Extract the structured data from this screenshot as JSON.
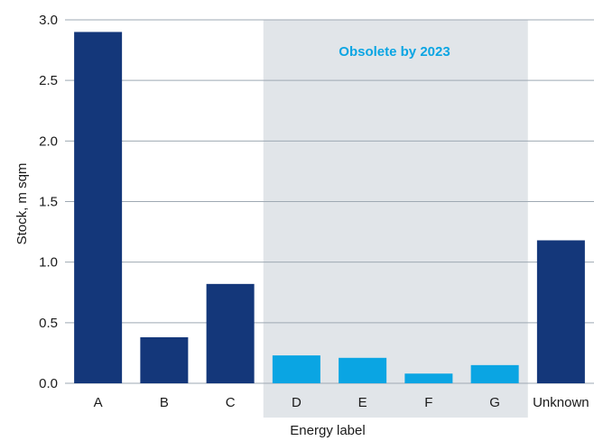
{
  "chart_data": {
    "type": "bar",
    "categories": [
      "A",
      "B",
      "C",
      "D",
      "E",
      "F",
      "G",
      "Unknown"
    ],
    "values": [
      2.9,
      0.38,
      0.82,
      0.23,
      0.21,
      0.08,
      0.15,
      1.18
    ],
    "xlabel": "Energy label",
    "ylabel": "Stock, m sqm",
    "ylim": [
      0,
      3.0
    ],
    "yticks": [
      "0.0",
      "0.5",
      "1.0",
      "1.5",
      "2.0",
      "2.5",
      "3.0"
    ],
    "grid": true,
    "highlight_region": {
      "categories": [
        "D",
        "E",
        "F",
        "G"
      ],
      "label": "Obsolete by 2023"
    },
    "colors": {
      "bar_default": "#14377a",
      "bar_highlight": "#0aa5e3",
      "region_fill": "#e1e5e9",
      "annotation": "#0aa5e3",
      "grid": "#9ea9b3"
    }
  }
}
